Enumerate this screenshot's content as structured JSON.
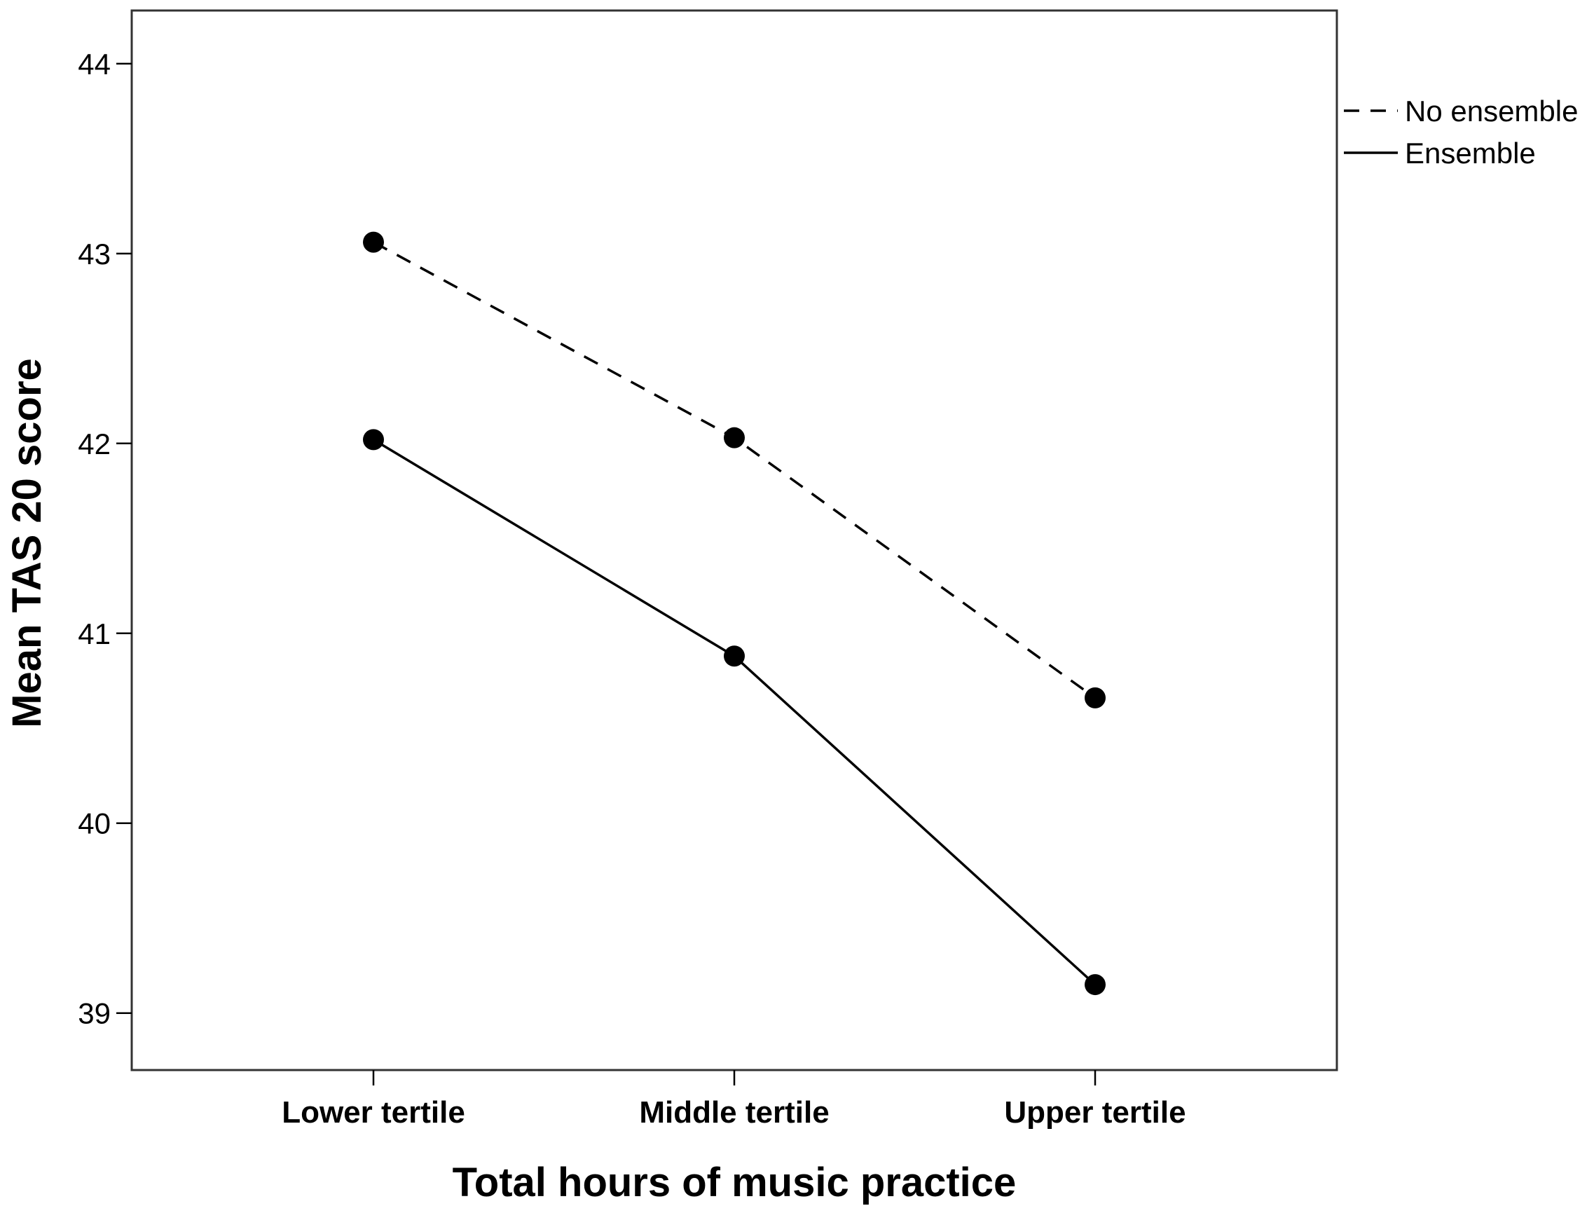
{
  "chart_data": {
    "type": "line",
    "title": "",
    "xlabel": "Total hours of music practice",
    "ylabel": "Mean TAS 20 score",
    "categories": [
      "Lower tertile",
      "Middle tertile",
      "Upper tertile"
    ],
    "ylim": [
      38.7,
      44.28
    ],
    "yticks": [
      "39",
      "40",
      "41",
      "42",
      "43",
      "44"
    ],
    "grid": false,
    "legend_position": "top-right, outside plot",
    "series": [
      {
        "name": "No ensemble",
        "style": "dashed",
        "color": "#000000",
        "values": [
          43.06,
          42.03,
          40.66
        ]
      },
      {
        "name": "Ensemble",
        "style": "solid",
        "color": "#000000",
        "values": [
          42.02,
          40.88,
          39.15
        ]
      }
    ]
  }
}
